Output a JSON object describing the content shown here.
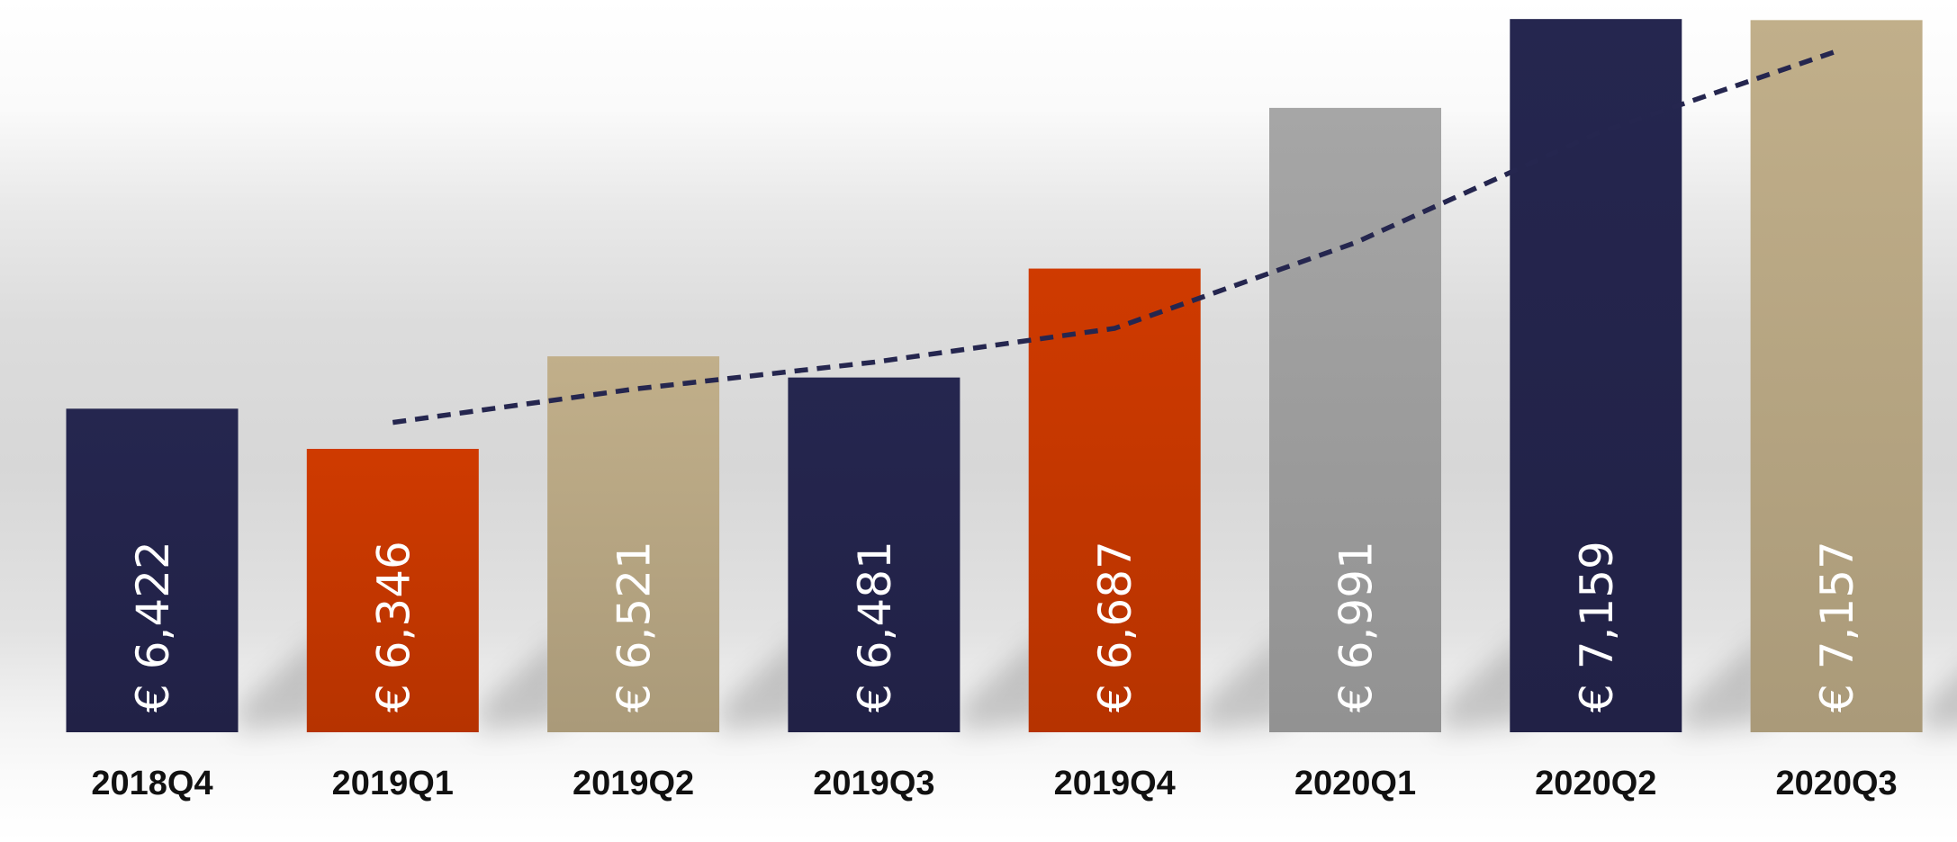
{
  "chart_data": {
    "type": "bar",
    "title": "",
    "xlabel": "",
    "ylabel": "",
    "categories": [
      "2018Q4",
      "2019Q1",
      "2019Q2",
      "2019Q3",
      "2019Q4",
      "2020Q1",
      "2020Q2",
      "2020Q3"
    ],
    "series": [
      {
        "values": [
          6422,
          6346,
          6521,
          6481,
          6687,
          6991,
          7159,
          7157
        ],
        "labels": [
          "€ 6,422",
          "€ 6,346",
          "€ 6,521",
          "€ 6,481",
          "€ 6,687",
          "€ 6,991",
          "€ 7,159",
          "€ 7,157"
        ],
        "colors": [
          "#25264f",
          "#cf3a00",
          "#c1af8a",
          "#25264f",
          "#cf3a00",
          "#a6a6a6",
          "#25264f",
          "#c1af8a"
        ]
      }
    ],
    "trend_line": {
      "style": "dashed",
      "color": "#25264f",
      "categories": [
        "2019Q1",
        "2019Q2",
        "2019Q3",
        "2019Q4",
        "2020Q1",
        "2020Q2",
        "2020Q3"
      ],
      "values": [
        6396,
        6459,
        6510,
        6574,
        6736,
        6942,
        7098
      ]
    },
    "ylim": [
      5810,
      7195
    ],
    "grid": false,
    "legend": "none"
  }
}
